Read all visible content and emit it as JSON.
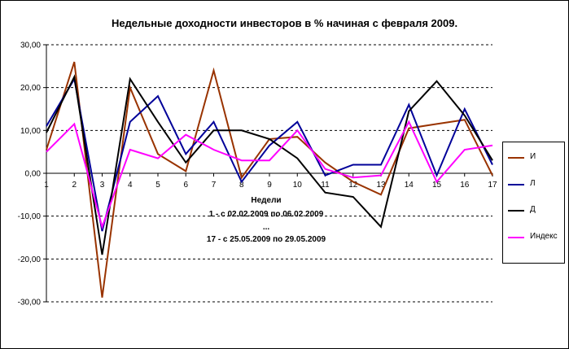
{
  "chart_data": {
    "type": "line",
    "title": "Недельные доходности инвесторов в % начиная с февраля 2009.",
    "x": [
      1,
      2,
      3,
      4,
      5,
      6,
      7,
      8,
      9,
      10,
      11,
      12,
      13,
      14,
      15,
      16,
      17
    ],
    "x_ticks": [
      "1",
      "2",
      "3",
      "4",
      "5",
      "6",
      "7",
      "8",
      "9",
      "10",
      "11",
      "12",
      "13",
      "14",
      "15",
      "16",
      "17"
    ],
    "y_ticks": [
      "30,00",
      "20,00",
      "10,00",
      "0,00",
      "-10,00",
      "-20,00",
      "-30,00"
    ],
    "ylim": [
      -30,
      30
    ],
    "grid": "horizontal dashed",
    "legend_position": "right",
    "annotations": [
      "Недели",
      "1 - с 02.02.2009 по 06.02.2009",
      "...",
      "17 - с 25.05.2009 по 29.05.2009"
    ],
    "series": [
      {
        "name": "И",
        "color": "#993300",
        "values": [
          5.5,
          26.0,
          -29.0,
          20.0,
          4.5,
          0.5,
          24.0,
          -1.0,
          8.0,
          8.5,
          2.5,
          -2.0,
          -5.0,
          10.5,
          11.5,
          12.5,
          -0.5
        ]
      },
      {
        "name": "Л",
        "color": "#000099",
        "values": [
          11.0,
          22.0,
          -13.5,
          12.0,
          18.0,
          4.5,
          12.0,
          -2.0,
          6.5,
          12.0,
          -0.5,
          2.0,
          2.0,
          16.0,
          -0.5,
          15.0,
          2.0
        ]
      },
      {
        "name": "Д",
        "color": "#000000",
        "values": [
          9.5,
          22.5,
          -19.0,
          22.0,
          12.0,
          2.5,
          10.0,
          10.0,
          8.0,
          3.5,
          -4.5,
          -5.5,
          -12.5,
          14.5,
          21.5,
          13.5,
          3.0
        ]
      },
      {
        "name": "Индекс",
        "color": "#ff00ff",
        "values": [
          5.0,
          11.5,
          -12.5,
          5.5,
          3.5,
          9.0,
          5.5,
          3.0,
          3.0,
          10.0,
          1.0,
          -1.0,
          -0.5,
          12.0,
          -2.0,
          5.5,
          6.5
        ]
      }
    ]
  }
}
